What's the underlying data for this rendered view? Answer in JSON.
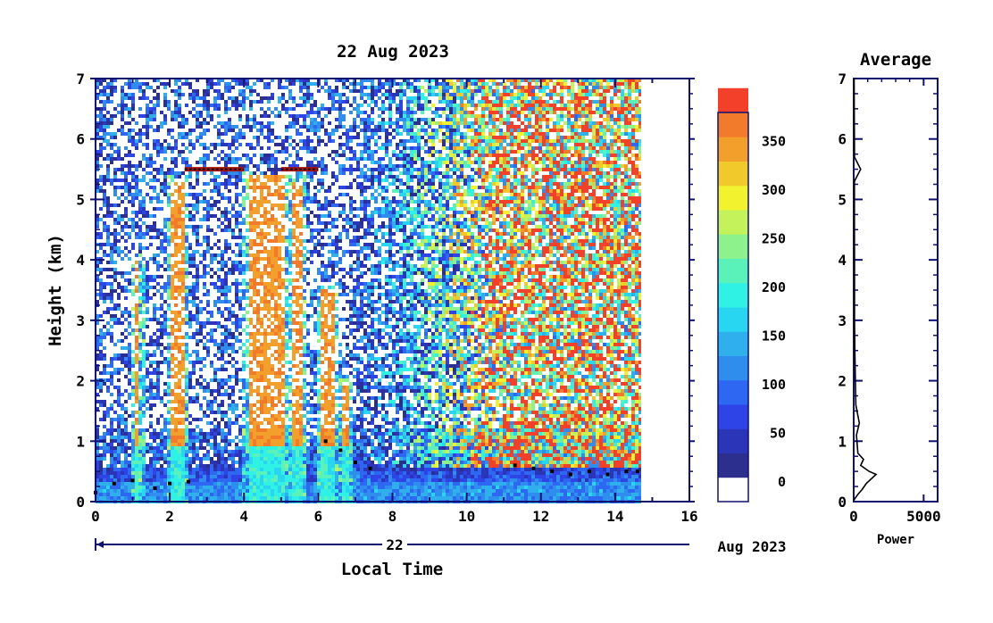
{
  "chart_data": [
    {
      "type": "heatmap",
      "title": "22 Aug 2023",
      "xlabel": "Local Time",
      "ylabel": "Height (km)",
      "xlim": [
        0,
        16
      ],
      "ylim": [
        0,
        7
      ],
      "x_ticks": [
        "0",
        "2",
        "4",
        "6",
        "8",
        "10",
        "12",
        "14",
        "16"
      ],
      "y_ticks": [
        "0",
        "1",
        "2",
        "3",
        "4",
        "5",
        "6",
        "7"
      ],
      "date_bar": {
        "day": "22",
        "month_year": "Aug 2023"
      },
      "data_end_hour": 14.7,
      "colorbar": {
        "min": -20,
        "max": 380,
        "step": 25,
        "tick_values": [
          0,
          50,
          100,
          150,
          200,
          250,
          300,
          350
        ],
        "tick_labels": [
          "0",
          "50",
          "100",
          "150",
          "200",
          "250",
          "300",
          "350"
        ],
        "colors": [
          "#2d2f8f",
          "#2b35b8",
          "#2e44e6",
          "#2d67f2",
          "#2f8ded",
          "#2fb0ec",
          "#29d6f2",
          "#2ff2e5",
          "#5af2b8",
          "#8ef28c",
          "#c4f25a",
          "#f2f22e",
          "#f2c92b",
          "#f2a02b",
          "#f27a2b",
          "#f2402b"
        ]
      },
      "features": {
        "rain_columns": [
          {
            "x0": 2.0,
            "x1": 2.4,
            "top": 5.3
          },
          {
            "x0": 4.1,
            "x1": 5.1,
            "top": 5.4
          },
          {
            "x0": 5.3,
            "x1": 5.6,
            "top": 5.3
          },
          {
            "x0": 6.1,
            "x1": 6.4,
            "top": 3.5
          },
          {
            "x0": 6.65,
            "x1": 6.8,
            "top": 2.0
          },
          {
            "x0": 1.05,
            "x1": 1.2,
            "top": 4.0
          }
        ],
        "cloud_layer_height_km": 5.5,
        "cloud_layer_spans": [
          [
            2.4,
            4.0
          ],
          [
            5.0,
            6.0
          ]
        ],
        "boundary_layer_points": [
          [
            0.0,
            0.15
          ],
          [
            0.5,
            0.3
          ],
          [
            1.0,
            0.35
          ],
          [
            1.6,
            0.22
          ],
          [
            2.0,
            0.3
          ],
          [
            2.5,
            0.33
          ],
          [
            6.2,
            1.0
          ],
          [
            6.6,
            0.85
          ],
          [
            7.0,
            0.65
          ],
          [
            7.4,
            0.55
          ],
          [
            11.3,
            0.6
          ],
          [
            11.8,
            0.55
          ],
          [
            12.3,
            0.5
          ],
          [
            12.8,
            0.45
          ],
          [
            13.3,
            0.5
          ],
          [
            13.8,
            0.45
          ],
          [
            14.3,
            0.5
          ],
          [
            14.6,
            0.5
          ]
        ]
      }
    },
    {
      "type": "line",
      "title": "Average",
      "xlabel": "Power",
      "xlim": [
        0,
        6000
      ],
      "ylim": [
        0,
        7
      ],
      "x_ticks": [
        "0",
        "5000"
      ],
      "y_ticks": [
        "0",
        "1",
        "2",
        "3",
        "4",
        "5",
        "6",
        "7"
      ],
      "series": [
        {
          "x": [
            0,
            300,
            600,
            900,
            1600,
            1100,
            500,
            700,
            300,
            250,
            200,
            400,
            150,
            120,
            80,
            60,
            60,
            60,
            50,
            50,
            500,
            60,
            50,
            40,
            30
          ],
          "y": [
            0.02,
            0.12,
            0.2,
            0.3,
            0.45,
            0.5,
            0.6,
            0.7,
            0.8,
            0.95,
            1.1,
            1.3,
            1.6,
            2.0,
            2.5,
            3.0,
            3.5,
            4.0,
            4.5,
            5.3,
            5.5,
            5.7,
            6.0,
            6.5,
            7.0
          ]
        }
      ]
    }
  ]
}
